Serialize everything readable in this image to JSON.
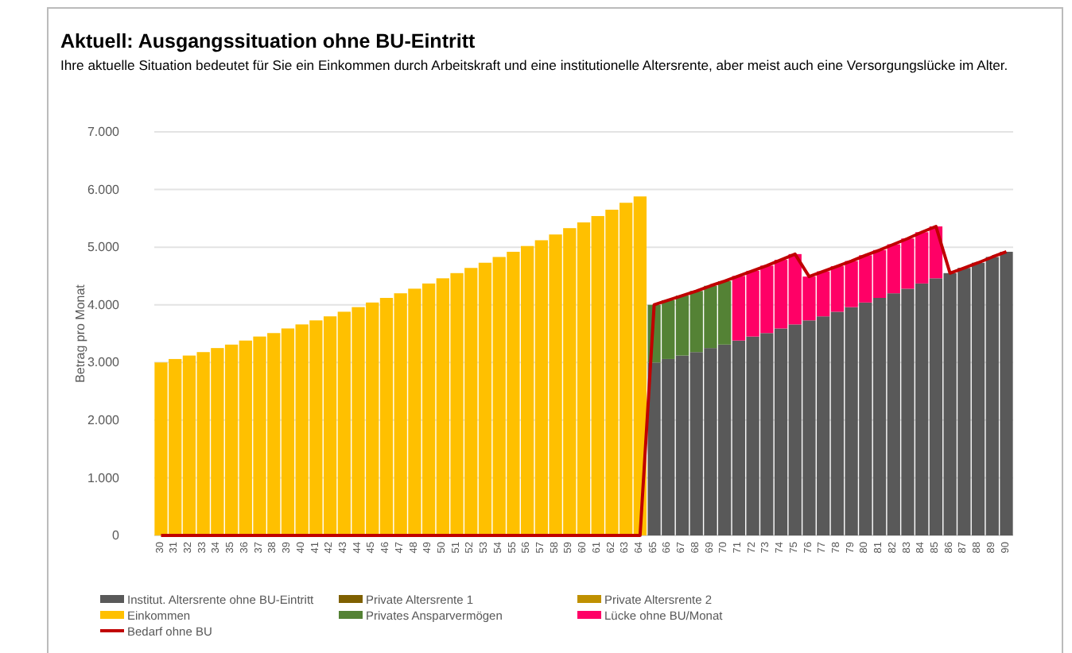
{
  "chart_data": {
    "type": "bar",
    "stacked": true,
    "title": "Aktuell: Ausgangssituation ohne BU-Eintritt",
    "subtitle": "Ihre aktuelle Situation bedeutet für Sie ein Einkommen durch Arbeitskraft und eine institutionelle Altersrente, aber meist auch eine Versorgungslücke im Alter.",
    "ylabel": "Betrag pro Monat",
    "categories": [
      "30",
      "31",
      "32",
      "33",
      "34",
      "35",
      "36",
      "37",
      "38",
      "39",
      "40",
      "41",
      "42",
      "43",
      "44",
      "45",
      "46",
      "47",
      "48",
      "49",
      "50",
      "51",
      "52",
      "53",
      "54",
      "55",
      "56",
      "57",
      "58",
      "59",
      "60",
      "61",
      "62",
      "63",
      "64",
      "65",
      "66",
      "67",
      "68",
      "69",
      "70",
      "71",
      "72",
      "73",
      "74",
      "75",
      "76",
      "77",
      "78",
      "79",
      "80",
      "81",
      "82",
      "83",
      "84",
      "85",
      "86",
      "87",
      "88",
      "89",
      "90"
    ],
    "ylim": [
      0,
      7000
    ],
    "yticks": [
      {
        "value": 0,
        "label": "0"
      },
      {
        "value": 1000,
        "label": "1.000"
      },
      {
        "value": 2000,
        "label": "2.000"
      },
      {
        "value": 3000,
        "label": "3.000"
      },
      {
        "value": 4000,
        "label": "4.000"
      },
      {
        "value": 5000,
        "label": "5.000"
      },
      {
        "value": 6000,
        "label": "6.000"
      },
      {
        "value": 7000,
        "label": "7.000"
      }
    ],
    "grid": "y",
    "legend": "bottom",
    "series": [
      {
        "name": "Institut. Altersrente ohne BU-Eintritt",
        "color": "#595959",
        "values": [
          null,
          null,
          null,
          null,
          null,
          null,
          null,
          null,
          null,
          null,
          null,
          null,
          null,
          null,
          null,
          null,
          null,
          null,
          null,
          null,
          null,
          null,
          null,
          null,
          null,
          null,
          null,
          null,
          null,
          null,
          null,
          null,
          null,
          null,
          null,
          3000,
          3060,
          3120,
          3180,
          3250,
          3310,
          3380,
          3450,
          3510,
          3590,
          3660,
          3730,
          3800,
          3880,
          3960,
          4040,
          4120,
          4200,
          4280,
          4370,
          4460,
          4550,
          4640,
          4730,
          4830,
          4920
        ]
      },
      {
        "name": "Private Altersrente 1",
        "color": "#7f6000",
        "values": [
          null,
          null,
          null,
          null,
          null,
          null,
          null,
          null,
          null,
          null,
          null,
          null,
          null,
          null,
          null,
          null,
          null,
          null,
          null,
          null,
          null,
          null,
          null,
          null,
          null,
          null,
          null,
          null,
          null,
          null,
          null,
          null,
          null,
          null,
          null,
          null,
          null,
          null,
          null,
          null,
          null,
          null,
          null,
          null,
          null,
          null,
          null,
          null,
          null,
          null,
          null,
          null,
          null,
          null,
          null,
          null,
          null,
          null,
          null,
          null,
          null
        ]
      },
      {
        "name": "Private Altersrente 2",
        "color": "#bf9000",
        "values": [
          null,
          null,
          null,
          null,
          null,
          null,
          null,
          null,
          null,
          null,
          null,
          null,
          null,
          null,
          null,
          null,
          null,
          null,
          null,
          null,
          null,
          null,
          null,
          null,
          null,
          null,
          null,
          null,
          null,
          null,
          null,
          null,
          null,
          null,
          null,
          null,
          null,
          null,
          null,
          null,
          null,
          null,
          null,
          null,
          null,
          null,
          null,
          null,
          null,
          null,
          null,
          null,
          null,
          null,
          null,
          null,
          null,
          null,
          null,
          null,
          null
        ]
      },
      {
        "name": "Einkommen",
        "color": "#ffc000",
        "values": [
          3000,
          3060,
          3120,
          3180,
          3250,
          3310,
          3380,
          3450,
          3510,
          3590,
          3660,
          3730,
          3800,
          3880,
          3960,
          4040,
          4120,
          4200,
          4280,
          4370,
          4460,
          4550,
          4640,
          4730,
          4830,
          4920,
          5020,
          5120,
          5220,
          5330,
          5430,
          5540,
          5650,
          5770,
          5880,
          null,
          null,
          null,
          null,
          null,
          null,
          null,
          null,
          null,
          null,
          null,
          null,
          null,
          null,
          null,
          null,
          null,
          null,
          null,
          null,
          null,
          null,
          null,
          null,
          null,
          null
        ]
      },
      {
        "name": "Privates Ansparvermögen",
        "color": "#548235",
        "values": [
          null,
          null,
          null,
          null,
          null,
          null,
          null,
          null,
          null,
          null,
          null,
          null,
          null,
          null,
          null,
          null,
          null,
          null,
          null,
          null,
          null,
          null,
          null,
          null,
          null,
          null,
          null,
          null,
          null,
          null,
          null,
          null,
          null,
          null,
          null,
          1000,
          1020,
          1040,
          1060,
          1080,
          1100,
          null,
          null,
          null,
          null,
          null,
          null,
          null,
          null,
          null,
          null,
          null,
          null,
          null,
          null,
          null,
          null,
          null,
          null,
          null,
          null
        ]
      },
      {
        "name": "Lücke ohne BU/Monat",
        "color": "#ff0066",
        "values": [
          null,
          null,
          null,
          null,
          null,
          null,
          null,
          null,
          null,
          null,
          null,
          null,
          null,
          null,
          null,
          null,
          null,
          null,
          null,
          null,
          null,
          null,
          null,
          null,
          null,
          null,
          null,
          null,
          null,
          null,
          null,
          null,
          null,
          null,
          null,
          null,
          null,
          null,
          null,
          null,
          null,
          1120,
          1140,
          1170,
          1190,
          1220,
          760,
          780,
          790,
          800,
          820,
          830,
          850,
          870,
          890,
          900,
          null,
          null,
          null,
          null,
          null
        ]
      },
      {
        "name": "Bedarf ohne BU",
        "type": "line",
        "color": "#c00000",
        "line_style": "solid",
        "marker": "none",
        "values": [
          0,
          0,
          0,
          0,
          0,
          0,
          0,
          0,
          0,
          0,
          0,
          0,
          0,
          0,
          0,
          0,
          0,
          0,
          0,
          0,
          0,
          0,
          0,
          0,
          0,
          0,
          0,
          0,
          0,
          0,
          0,
          0,
          0,
          0,
          0,
          4000,
          4080,
          4160,
          4240,
          4330,
          4410,
          4500,
          4590,
          4680,
          4780,
          4880,
          4490,
          4580,
          4670,
          4760,
          4860,
          4950,
          5050,
          5150,
          5260,
          5360,
          4550,
          4640,
          4730,
          4830,
          4920
        ]
      }
    ]
  }
}
